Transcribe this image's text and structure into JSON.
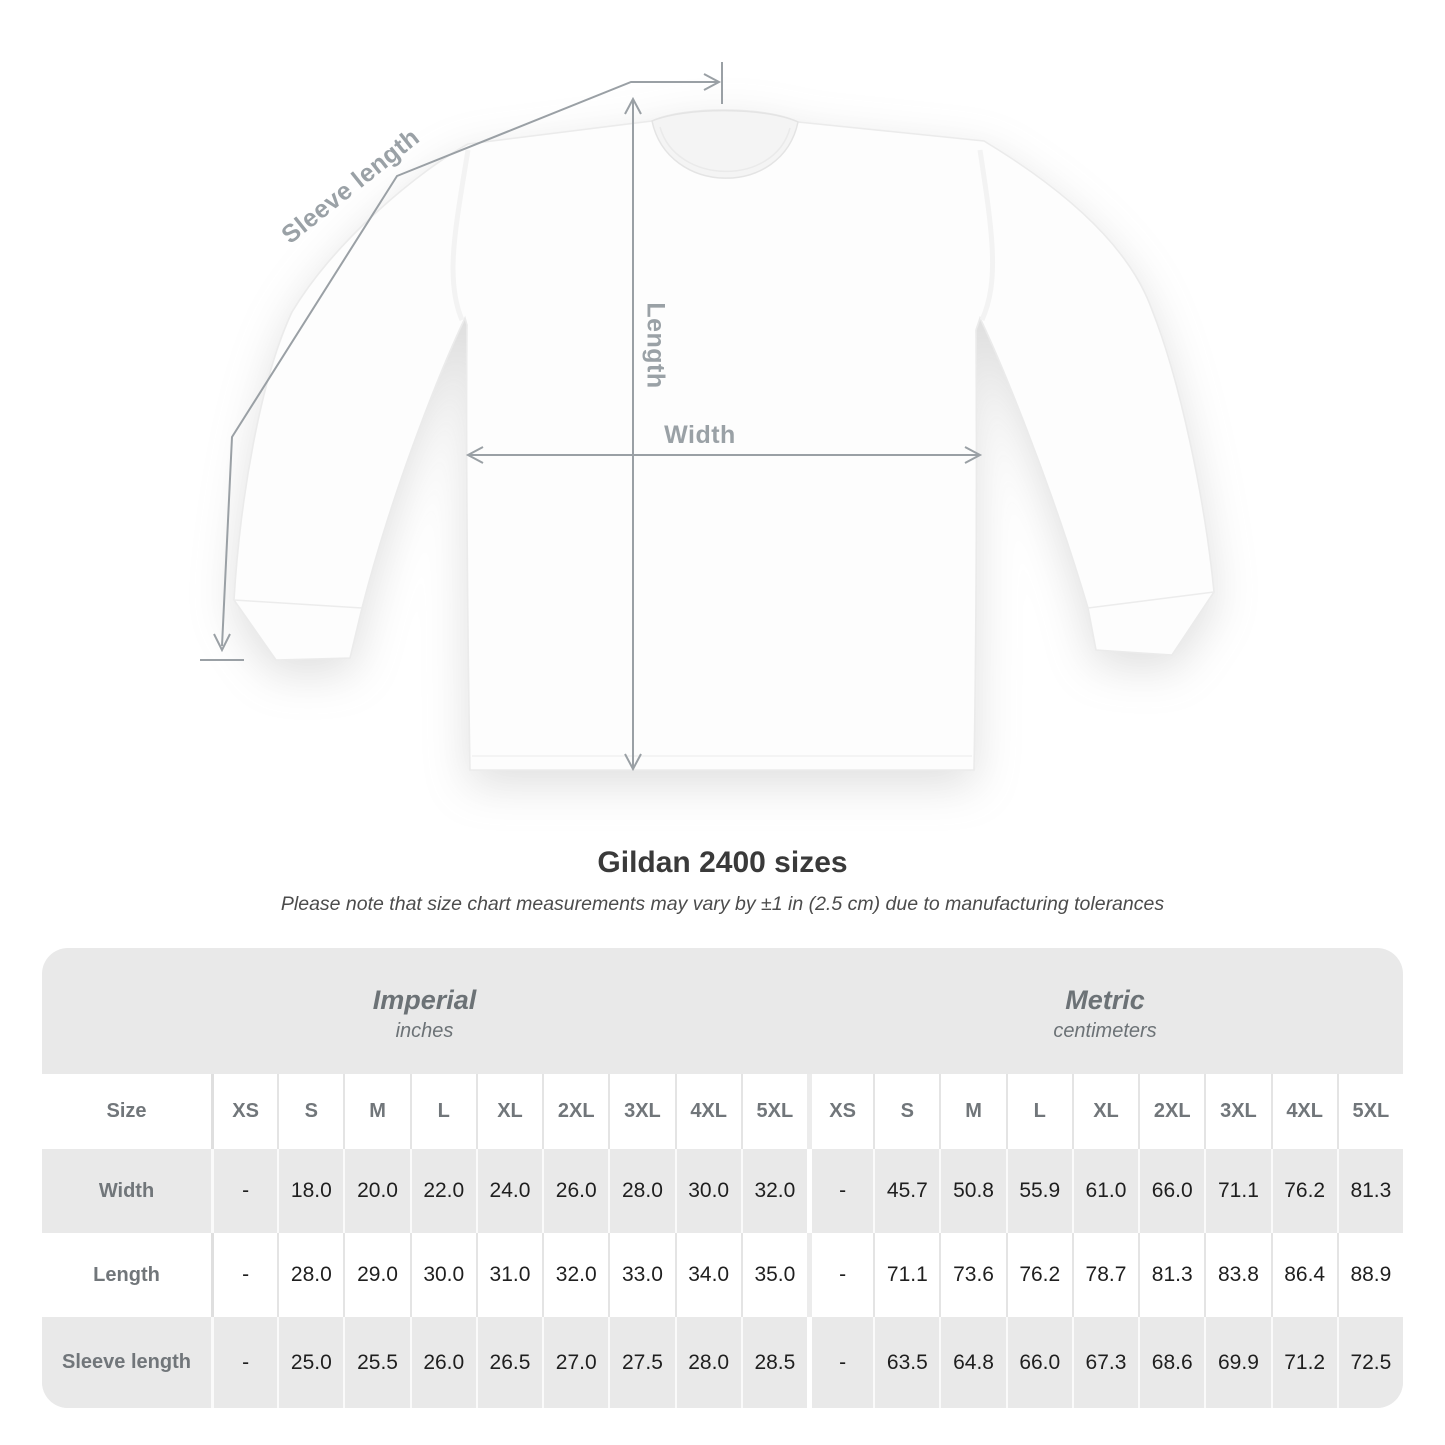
{
  "diagram": {
    "labels": {
      "sleeve": "Sleeve length",
      "length": "Length",
      "width": "Width"
    },
    "arrow_color": "#9aa0a5"
  },
  "title": "Gildan 2400 sizes",
  "subtitle": "Please note that size chart measurements may vary by ±1 in (2.5 cm) due to manufacturing tolerances",
  "table": {
    "groups": [
      {
        "name": "Imperial",
        "unit": "inches"
      },
      {
        "name": "Metric",
        "unit": "centimeters"
      }
    ],
    "size_label": "Size",
    "sizes": [
      "XS",
      "S",
      "M",
      "L",
      "XL",
      "2XL",
      "3XL",
      "4XL",
      "5XL"
    ],
    "rows": [
      {
        "label": "Width",
        "imperial": [
          "-",
          "18.0",
          "20.0",
          "22.0",
          "24.0",
          "26.0",
          "28.0",
          "30.0",
          "32.0"
        ],
        "metric": [
          "-",
          "45.7",
          "50.8",
          "55.9",
          "61.0",
          "66.0",
          "71.1",
          "76.2",
          "81.3"
        ]
      },
      {
        "label": "Length",
        "imperial": [
          "-",
          "28.0",
          "29.0",
          "30.0",
          "31.0",
          "32.0",
          "33.0",
          "34.0",
          "35.0"
        ],
        "metric": [
          "-",
          "71.1",
          "73.6",
          "76.2",
          "78.7",
          "81.3",
          "83.8",
          "86.4",
          "88.9"
        ]
      },
      {
        "label": "Sleeve length",
        "imperial": [
          "-",
          "25.0",
          "25.5",
          "26.0",
          "26.5",
          "27.0",
          "27.5",
          "28.0",
          "28.5"
        ],
        "metric": [
          "-",
          "63.5",
          "64.8",
          "66.0",
          "67.3",
          "68.6",
          "69.9",
          "71.2",
          "72.5"
        ]
      }
    ],
    "colors": {
      "band_bg": "#e9e9e9",
      "header_text": "#71767a",
      "value_text": "#1f1f1f"
    }
  },
  "chart_data": {
    "type": "table",
    "title": "Gildan 2400 sizes",
    "columns": [
      "XS",
      "S",
      "M",
      "L",
      "XL",
      "2XL",
      "3XL",
      "4XL",
      "5XL"
    ],
    "series": [
      {
        "name": "Width (in)",
        "values": [
          null,
          18.0,
          20.0,
          22.0,
          24.0,
          26.0,
          28.0,
          30.0,
          32.0
        ]
      },
      {
        "name": "Length (in)",
        "values": [
          null,
          28.0,
          29.0,
          30.0,
          31.0,
          32.0,
          33.0,
          34.0,
          35.0
        ]
      },
      {
        "name": "Sleeve length (in)",
        "values": [
          null,
          25.0,
          25.5,
          26.0,
          26.5,
          27.0,
          27.5,
          28.0,
          28.5
        ]
      },
      {
        "name": "Width (cm)",
        "values": [
          null,
          45.7,
          50.8,
          55.9,
          61.0,
          66.0,
          71.1,
          76.2,
          81.3
        ]
      },
      {
        "name": "Length (cm)",
        "values": [
          null,
          71.1,
          73.6,
          76.2,
          78.7,
          81.3,
          83.8,
          86.4,
          88.9
        ]
      },
      {
        "name": "Sleeve length (cm)",
        "values": [
          null,
          63.5,
          64.8,
          66.0,
          67.3,
          68.6,
          69.9,
          71.2,
          72.5
        ]
      }
    ]
  }
}
